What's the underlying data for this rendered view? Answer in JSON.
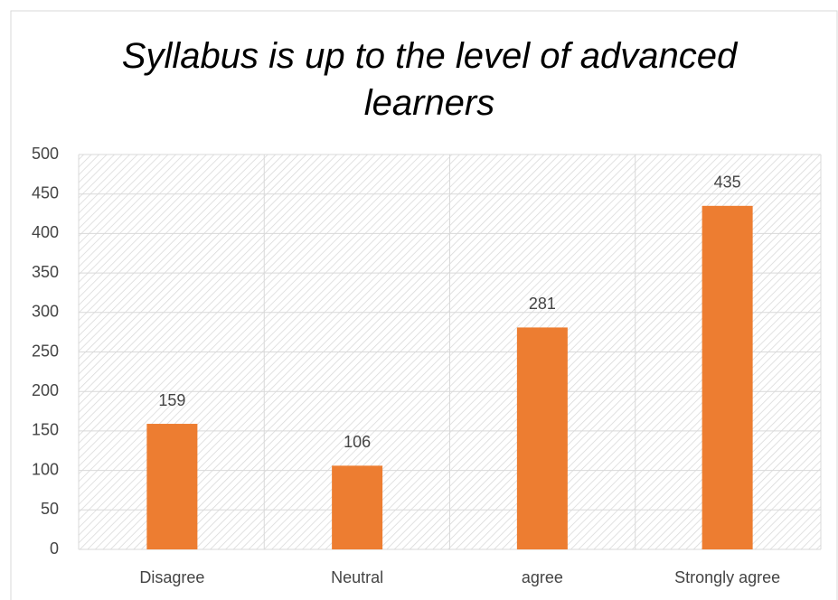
{
  "chart_data": {
    "type": "bar",
    "title": "Syllabus is up to the level of advanced learners",
    "categories": [
      "Disagree",
      "Neutral",
      "agree",
      "Strongly agree"
    ],
    "values": [
      159,
      106,
      281,
      435
    ],
    "color": "#ed7d31",
    "ylim": [
      0,
      500
    ],
    "yticks": [
      0,
      50,
      100,
      150,
      200,
      250,
      300,
      350,
      400,
      450,
      500
    ],
    "grid": true
  }
}
